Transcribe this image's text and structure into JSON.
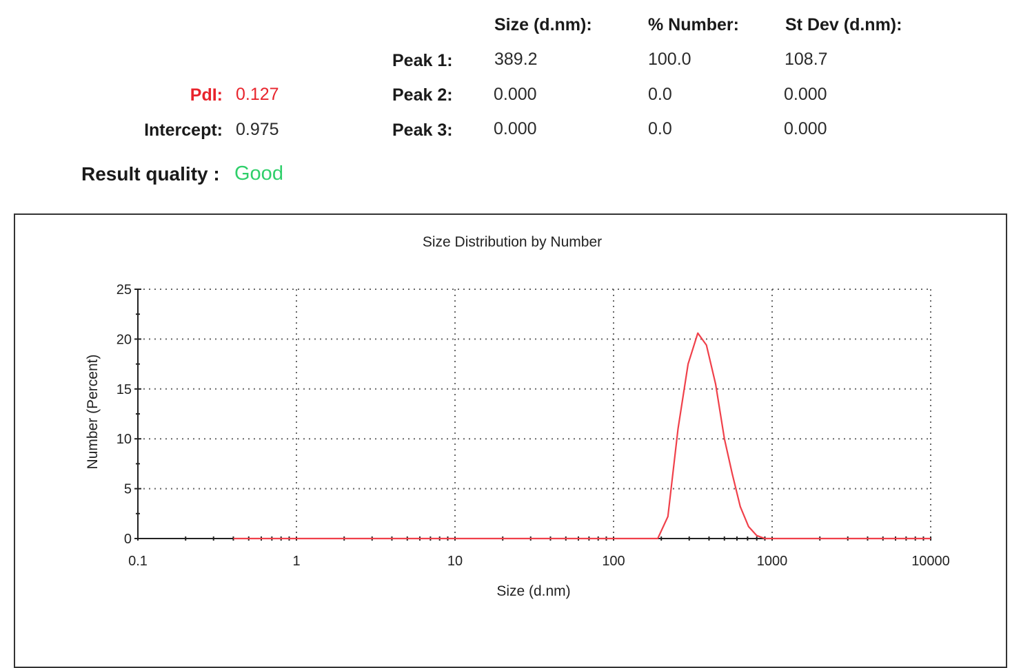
{
  "summary": {
    "headers": {
      "size": "Size (d.nm):",
      "number": "% Number:",
      "stdev": "St Dev (d.nm):"
    },
    "pdi": {
      "label": "PdI:",
      "value": "0.127"
    },
    "intercept": {
      "label": "Intercept:",
      "value": "0.975"
    },
    "quality": {
      "label": "Result quality :",
      "value": "Good"
    },
    "peaks": [
      {
        "label": "Peak 1:",
        "size": "389.2",
        "number": "100.0",
        "stdev": "108.7"
      },
      {
        "label": "Peak 2:",
        "size": "0.000",
        "number": "0.0",
        "stdev": "0.000"
      },
      {
        "label": "Peak 3:",
        "size": "0.000",
        "number": "0.0",
        "stdev": "0.000"
      }
    ]
  },
  "colors": {
    "pdi": "#e8242c",
    "good": "#2fcf6a",
    "curve": "#f0404a"
  },
  "chart_data": {
    "type": "line",
    "title": "Size Distribution by Number",
    "xlabel": "Size (d.nm)",
    "ylabel": "Number (Percent)",
    "x_scale": "log",
    "xlim": [
      0.1,
      10000
    ],
    "ylim": [
      0,
      25
    ],
    "x_ticks": [
      "0.1",
      "1",
      "10",
      "100",
      "1000",
      "10000"
    ],
    "y_ticks": [
      "0",
      "5",
      "10",
      "15",
      "20",
      "25"
    ],
    "grid": true,
    "series": [
      {
        "x": [
          0.4,
          10,
          100,
          190,
          220,
          255,
          295,
          340,
          385,
          440,
          500,
          560,
          630,
          710,
          800,
          900,
          10000
        ],
        "values": [
          0,
          0,
          0,
          0,
          2.2,
          11.0,
          17.5,
          20.6,
          19.4,
          15.5,
          10.0,
          6.5,
          3.2,
          1.2,
          0.3,
          0,
          0
        ]
      }
    ]
  }
}
